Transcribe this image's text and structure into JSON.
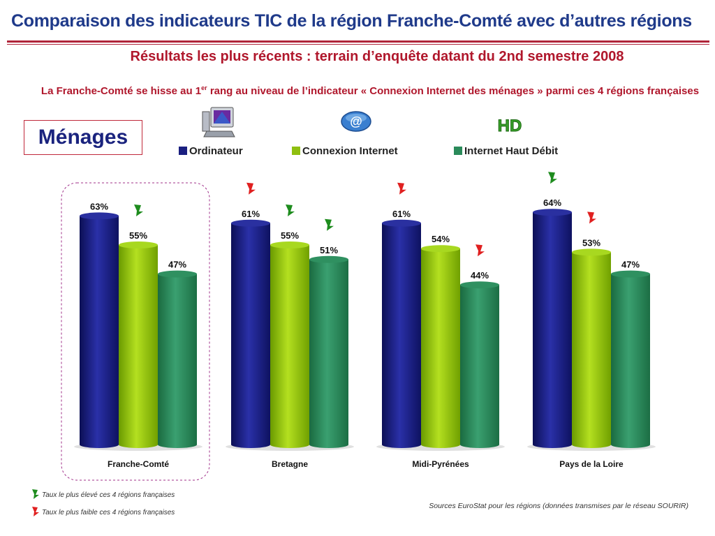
{
  "header": {
    "title": "Comparaison des indicateurs TIC de la région Franche-Comté avec d’autres régions",
    "subtitle": "Résultats les plus récents : terrain d’enquête datant du 2nd semestre 2008",
    "intro_part1": "La Franche-Comté se hisse au 1",
    "intro_sup": "er",
    "intro_part2": " rang au niveau de l’indicateur « Connexion Internet des ménages » parmi ces 4 régions françaises"
  },
  "section_label": "Ménages",
  "icons": [
    "computer-icon",
    "at-sign-icon",
    "hd-icon"
  ],
  "colors": {
    "ordinateur": "#1a1f80",
    "connexion": "#8fbf10",
    "haut_debit": "#2a8a5a",
    "highest_marker": "#1e8c1e",
    "lowest_marker": "#e02020",
    "highlight_border": "#a0308a"
  },
  "chart_data": {
    "type": "bar",
    "categories": [
      "Franche-Comté",
      "Bretagne",
      "Midi-Pyrénées",
      "Pays de la Loire"
    ],
    "series": [
      {
        "name": "Ordinateur",
        "values": [
          63,
          61,
          61,
          64
        ],
        "labels": [
          "63%",
          "61%",
          "61%",
          "64%"
        ]
      },
      {
        "name": "Connexion Internet",
        "values": [
          55,
          55,
          54,
          53
        ],
        "labels": [
          "55%",
          "55%",
          "54%",
          "53%"
        ]
      },
      {
        "name": "Internet Haut Débit",
        "values": [
          47,
          51,
          44,
          47
        ],
        "labels": [
          "47%",
          "51%",
          "44%",
          "47%"
        ]
      }
    ],
    "markers": [
      {
        "category": "Franche-Comté",
        "series": "Connexion Internet",
        "type": "highest"
      },
      {
        "category": "Bretagne",
        "series": "Ordinateur",
        "type": "lowest"
      },
      {
        "category": "Bretagne",
        "series": "Connexion Internet",
        "type": "highest"
      },
      {
        "category": "Bretagne",
        "series": "Internet Haut Débit",
        "type": "highest"
      },
      {
        "category": "Midi-Pyrénées",
        "series": "Ordinateur",
        "type": "lowest"
      },
      {
        "category": "Midi-Pyrénées",
        "series": "Internet Haut Débit",
        "type": "lowest"
      },
      {
        "category": "Pays de la Loire",
        "series": "Ordinateur",
        "type": "highest"
      },
      {
        "category": "Pays de la Loire",
        "series": "Connexion Internet",
        "type": "lowest"
      }
    ],
    "highlighted_category": "Franche-Comté",
    "legend_position": "top",
    "ylim": [
      0,
      70
    ],
    "grid": false
  },
  "notes": {
    "highest": "Taux le plus élevé ces 4 régions françaises",
    "lowest": "Taux le plus faible ces 4 régions françaises"
  },
  "source": "Sources EuroStat pour les régions (données transmises par le réseau SOURIR)"
}
